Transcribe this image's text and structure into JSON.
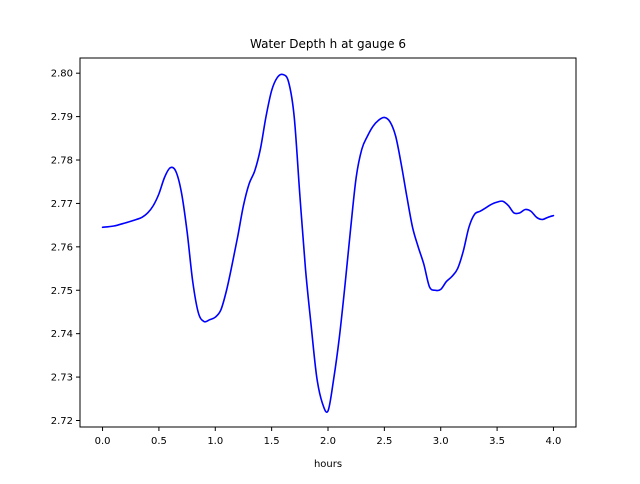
{
  "chart_data": {
    "type": "line",
    "title": "Water Depth h at gauge 6",
    "xlabel": "hours",
    "ylabel": "",
    "xlim": [
      -0.2,
      4.2
    ],
    "ylim": [
      2.7185,
      2.8035
    ],
    "xticks": [
      0.0,
      0.5,
      1.0,
      1.5,
      2.0,
      2.5,
      3.0,
      3.5,
      4.0
    ],
    "xtick_labels": [
      "0.0",
      "0.5",
      "1.0",
      "1.5",
      "2.0",
      "2.5",
      "3.0",
      "3.5",
      "4.0"
    ],
    "yticks": [
      2.72,
      2.73,
      2.74,
      2.75,
      2.76,
      2.77,
      2.78,
      2.79,
      2.8
    ],
    "ytick_labels": [
      "2.72",
      "2.73",
      "2.74",
      "2.75",
      "2.76",
      "2.77",
      "2.78",
      "2.79",
      "2.80"
    ],
    "grid": false,
    "legend": false,
    "series": [
      {
        "color": "#0000ff",
        "x": [
          0.0,
          0.1,
          0.2,
          0.3,
          0.35,
          0.4,
          0.45,
          0.5,
          0.55,
          0.6,
          0.65,
          0.7,
          0.75,
          0.8,
          0.85,
          0.9,
          0.95,
          1.0,
          1.05,
          1.1,
          1.15,
          1.2,
          1.25,
          1.3,
          1.35,
          1.4,
          1.45,
          1.5,
          1.55,
          1.6,
          1.65,
          1.7,
          1.75,
          1.8,
          1.85,
          1.9,
          1.95,
          2.0,
          2.05,
          2.1,
          2.15,
          2.2,
          2.25,
          2.3,
          2.35,
          2.4,
          2.45,
          2.5,
          2.55,
          2.6,
          2.65,
          2.7,
          2.75,
          2.8,
          2.85,
          2.9,
          2.95,
          3.0,
          3.05,
          3.1,
          3.15,
          3.2,
          3.25,
          3.3,
          3.35,
          3.4,
          3.45,
          3.5,
          3.55,
          3.6,
          3.65,
          3.7,
          3.75,
          3.8,
          3.85,
          3.9,
          3.95,
          4.0
        ],
        "y": [
          2.7645,
          2.7648,
          2.7655,
          2.7663,
          2.7668,
          2.7678,
          2.7695,
          2.7722,
          2.776,
          2.7782,
          2.7774,
          2.7725,
          2.7635,
          2.752,
          2.7448,
          2.7428,
          2.7432,
          2.7438,
          2.7455,
          2.75,
          2.756,
          2.7625,
          2.7695,
          2.7745,
          2.7775,
          2.7825,
          2.79,
          2.796,
          2.799,
          2.7997,
          2.798,
          2.79,
          2.772,
          2.755,
          2.742,
          2.73,
          2.724,
          2.7222,
          2.7295,
          2.739,
          2.751,
          2.764,
          2.776,
          2.7825,
          2.7855,
          2.7878,
          2.7892,
          2.7898,
          2.7888,
          2.7855,
          2.779,
          2.7715,
          2.7645,
          2.76,
          2.756,
          2.7508,
          2.75,
          2.7502,
          2.752,
          2.7532,
          2.755,
          2.759,
          2.7645,
          2.7675,
          2.7682,
          2.769,
          2.7698,
          2.7703,
          2.7705,
          2.7695,
          2.7678,
          2.7678,
          2.7686,
          2.7682,
          2.7668,
          2.7663,
          2.7668,
          2.7672
        ]
      }
    ]
  }
}
